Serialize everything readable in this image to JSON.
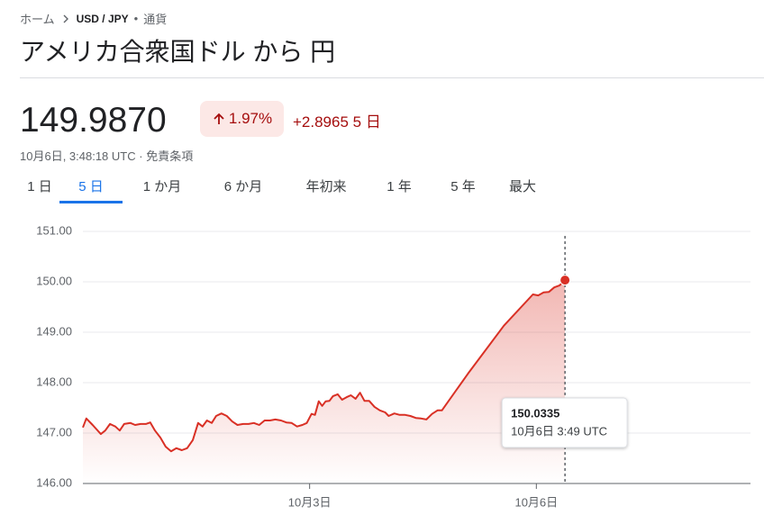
{
  "breadcrumb": {
    "home": "ホーム",
    "pair": "USD / JPY",
    "separator": "•",
    "category": "通貨"
  },
  "title": "アメリカ合衆国ドル から 円",
  "price": "149.9870",
  "change_percent": "1.97%",
  "change_amount": "+2.8965",
  "change_period": "5 日",
  "updated": "10月6日, 3:48:18 UTC",
  "updated_separator": "·",
  "disclaimer": "免責条項",
  "tabs": [
    "1 日",
    "5 日",
    "1 か月",
    "6 か月",
    "年初来",
    "1 年",
    "5 年",
    "最大"
  ],
  "selected_tab": 1,
  "chart_data": {
    "type": "line",
    "color": "#d93025",
    "grid": true,
    "x": [
      0,
      1.1,
      3.1,
      5.7,
      7.1,
      8.6,
      10.3,
      11.7,
      13.1,
      15.1,
      16.6,
      18.3,
      20,
      21.4,
      22.9,
      24.6,
      26.3,
      28,
      29.7,
      31.4,
      33.1,
      34.9,
      36.6,
      38,
      39.4,
      40.9,
      42.3,
      44,
      45.7,
      47.4,
      49.1,
      50.9,
      52.6,
      54.3,
      56,
      57.7,
      59.4,
      61.1,
      62.9,
      64.6,
      66.3,
      68,
      69.7,
      71.1,
      72.6,
      73.7,
      74.9,
      76,
      77.1,
      78.3,
      79.4,
      80.9,
      82.3,
      83.7,
      85.1,
      86.6,
      88,
      89.4,
      90.9,
      92.6,
      94.3,
      96,
      97.1,
      98.9,
      100.6,
      102.3,
      104,
      105.7,
      107.4,
      109.1,
      110.9,
      112.6,
      114,
      122.3,
      133.7,
      142.9,
      144.6,
      146.3,
      148,
      149.7,
      151.4,
      153.1
    ],
    "values": [
      147.11,
      147.29,
      147.16,
      146.98,
      147.05,
      147.18,
      147.13,
      147.05,
      147.18,
      147.2,
      147.16,
      147.18,
      147.18,
      147.21,
      147.05,
      146.91,
      146.73,
      146.64,
      146.7,
      146.66,
      146.7,
      146.86,
      147.2,
      147.13,
      147.25,
      147.2,
      147.34,
      147.39,
      147.34,
      147.23,
      147.16,
      147.18,
      147.18,
      147.2,
      147.16,
      147.25,
      147.25,
      147.27,
      147.25,
      147.21,
      147.2,
      147.13,
      147.16,
      147.2,
      147.38,
      147.36,
      147.63,
      147.54,
      147.63,
      147.64,
      147.73,
      147.77,
      147.66,
      147.71,
      147.75,
      147.68,
      147.8,
      147.64,
      147.64,
      147.52,
      147.45,
      147.41,
      147.34,
      147.39,
      147.36,
      147.36,
      147.34,
      147.3,
      147.29,
      147.27,
      147.38,
      147.45,
      147.45,
      148.18,
      149.13,
      149.75,
      149.73,
      149.79,
      149.8,
      149.89,
      149.93,
      150.0335
    ],
    "xlim": [
      0,
      212
    ],
    "xticks": [
      {
        "value": 72,
        "label": "10月3日"
      },
      {
        "value": 144,
        "label": "10月6日"
      }
    ],
    "ylim": [
      146,
      151
    ],
    "yticks": [
      {
        "value": 146,
        "label": "146.00"
      },
      {
        "value": 147,
        "label": "147.00"
      },
      {
        "value": 148,
        "label": "148.00"
      },
      {
        "value": 149,
        "label": "149.00"
      },
      {
        "value": 150,
        "label": "150.00"
      },
      {
        "value": 151,
        "label": "151.00"
      }
    ],
    "tooltip_time": "10月6日 3:49 UTC"
  }
}
